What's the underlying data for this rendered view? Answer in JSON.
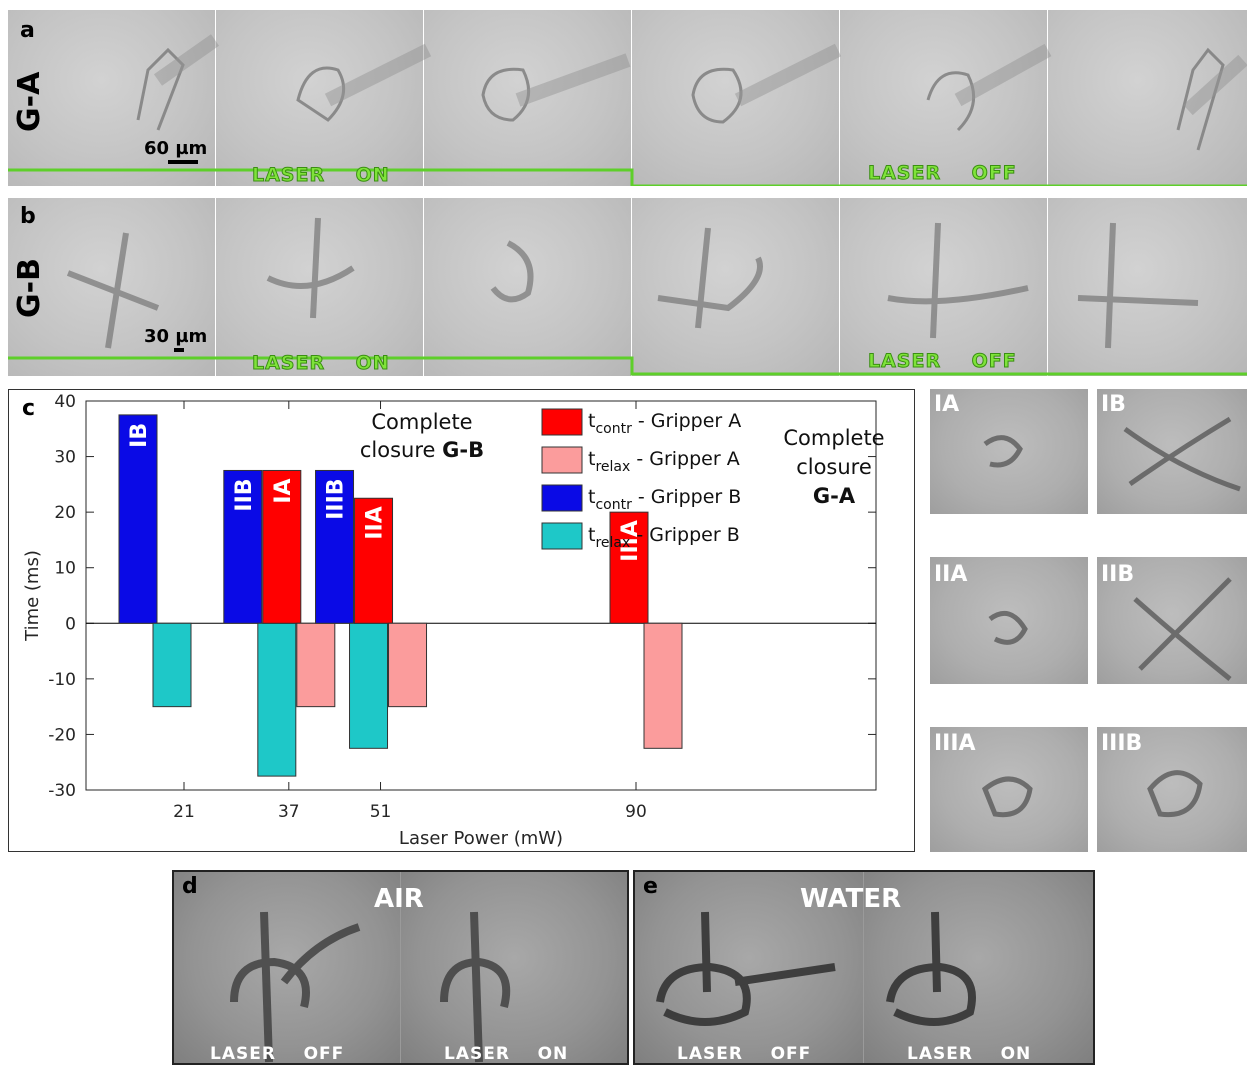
{
  "panel_a": {
    "letter": "a",
    "label": "G-A",
    "scale": "60 µm",
    "laser_on": "LASER    ON",
    "laser_off": "LASER    OFF"
  },
  "panel_b": {
    "letter": "b",
    "label": "G-B",
    "scale": "30 µm",
    "laser_on": "LASER    ON",
    "laser_off": "LASER    OFF"
  },
  "panel_c": {
    "letter": "c"
  },
  "thumbs": [
    "IA",
    "IB",
    "IIA",
    "IIB",
    "IIIA",
    "IIIB"
  ],
  "panel_d": {
    "letter": "d",
    "title": "AIR",
    "left_label": "LASER    OFF",
    "right_label": "LASER    ON"
  },
  "panel_e": {
    "letter": "e",
    "title": "WATER",
    "left_label": "LASER    OFF",
    "right_label": "LASER    ON"
  },
  "chart_data": {
    "type": "bar",
    "xlabel": "Laser Power (mW)",
    "ylabel": "Time (ms)",
    "ylim": [
      -30,
      40
    ],
    "yticks": [
      -30,
      -20,
      -10,
      0,
      10,
      20,
      30,
      40
    ],
    "xticks": [
      21,
      37,
      51,
      90
    ],
    "colors": {
      "contrA": "#ff0000",
      "relaxA": "#fb9c9c",
      "contrB": "#0a0ae6",
      "relaxB": "#1ec8c8"
    },
    "legend": [
      {
        "key": "contrA",
        "main": "t",
        "sub": "contr",
        "rest": " - Gripper A"
      },
      {
        "key": "relaxA",
        "main": "t",
        "sub": "relax",
        "rest": " - Gripper A"
      },
      {
        "key": "contrB",
        "main": "t",
        "sub": "contr",
        "rest": " - Gripper B"
      },
      {
        "key": "relaxB",
        "main": "t",
        "sub": "relax",
        "rest": " - Gripper B"
      }
    ],
    "bars": [
      {
        "x": 21,
        "series": "contrB",
        "value": 37.5,
        "label": "IB"
      },
      {
        "x": 21,
        "series": "relaxB",
        "value": -15
      },
      {
        "x": 37,
        "series": "contrB",
        "value": 27.5,
        "label": "IIB"
      },
      {
        "x": 37,
        "series": "relaxB",
        "value": -27.5
      },
      {
        "x": 37,
        "series": "contrA",
        "value": 27.5,
        "label": "IA"
      },
      {
        "x": 37,
        "series": "relaxA",
        "value": -15
      },
      {
        "x": 51,
        "series": "contrB",
        "value": 27.5,
        "label": "IIIB"
      },
      {
        "x": 51,
        "series": "relaxB",
        "value": -22.5
      },
      {
        "x": 51,
        "series": "contrA",
        "value": 22.5,
        "label": "IIA"
      },
      {
        "x": 51,
        "series": "relaxA",
        "value": -15
      },
      {
        "x": 90,
        "series": "contrA",
        "value": 20,
        "label": "IIIA"
      },
      {
        "x": 90,
        "series": "relaxA",
        "value": -22.5
      }
    ],
    "annotations": [
      {
        "lines": [
          "Complete",
          "closure"
        ],
        "bold": "G-B",
        "near": 37
      },
      {
        "lines": [
          "Complete",
          "closure"
        ],
        "bold": "G-A",
        "near": 90
      }
    ]
  }
}
